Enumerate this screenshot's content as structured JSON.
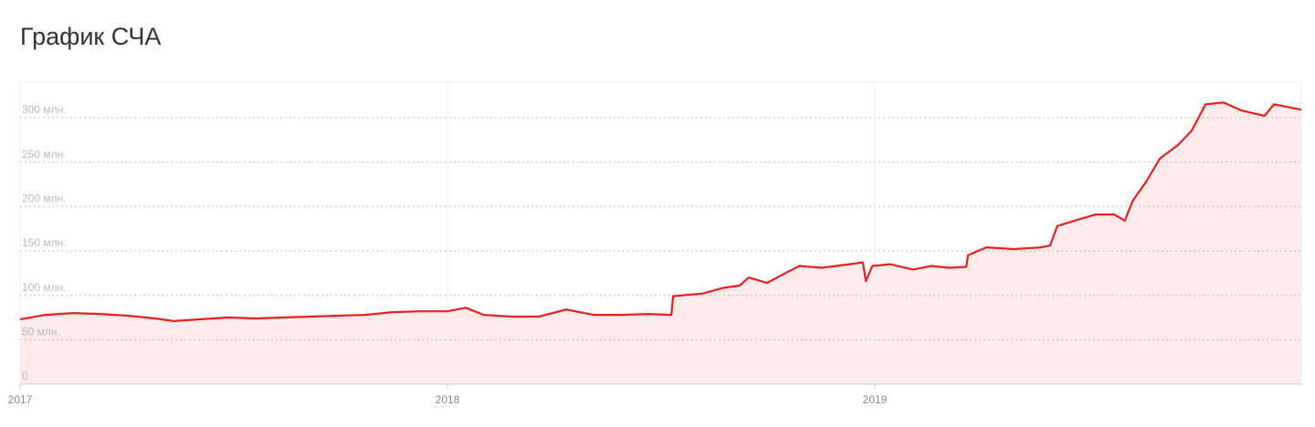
{
  "chart_data": {
    "type": "area",
    "title": "График СЧА",
    "x": [
      2017.0,
      2017.06,
      2017.124,
      2017.188,
      2017.252,
      2017.316,
      2017.359,
      2017.423,
      2017.487,
      2017.551,
      2017.615,
      2017.679,
      2017.744,
      2017.808,
      2017.872,
      2017.936,
      2018.0,
      2018.043,
      2018.085,
      2018.15,
      2018.214,
      2018.278,
      2018.342,
      2018.406,
      2018.47,
      2018.524,
      2018.528,
      2018.598,
      2018.641,
      2018.684,
      2018.705,
      2018.748,
      2018.791,
      2018.823,
      2018.876,
      2018.94,
      2018.972,
      2018.979,
      2018.994,
      2019.036,
      2019.09,
      2019.132,
      2019.175,
      2019.214,
      2019.218,
      2019.261,
      2019.325,
      2019.389,
      2019.41,
      2019.427,
      2019.474,
      2019.517,
      2019.56,
      2019.585,
      2019.603,
      2019.635,
      2019.667,
      2019.709,
      2019.741,
      2019.774,
      2019.816,
      2019.859,
      2019.912,
      2019.934,
      2019.966,
      2019.998
    ],
    "values": [
      73,
      78,
      80,
      79,
      77,
      74,
      71,
      73,
      75,
      74,
      75,
      76,
      77,
      78,
      81,
      82,
      82,
      86,
      78,
      76,
      76,
      84,
      78,
      78,
      79,
      78,
      99,
      102,
      108,
      111,
      120,
      114,
      125,
      133,
      131,
      135,
      137,
      116,
      133,
      135,
      129,
      133,
      131,
      132,
      145,
      154,
      152,
      154,
      156,
      178,
      185,
      191,
      191,
      184,
      206,
      228,
      254,
      269,
      285,
      315,
      317,
      308,
      302,
      315,
      312,
      309
    ],
    "color": "#e8201f",
    "fill": "#fdeaea",
    "xlim": [
      2017,
      2020
    ],
    "xticks": [
      2017,
      2018,
      2019
    ],
    "ylim": [
      0,
      340
    ],
    "yticks": [
      0,
      {
        "value": 50,
        "label": "50 млн."
      },
      {
        "value": 100,
        "label": "100 млн."
      },
      {
        "value": 150,
        "label": "150 млн."
      },
      {
        "value": 200,
        "label": "200 млн."
      },
      {
        "value": 250,
        "label": "250 млн."
      },
      {
        "value": 300,
        "label": "300 млн."
      }
    ],
    "grid": true
  }
}
